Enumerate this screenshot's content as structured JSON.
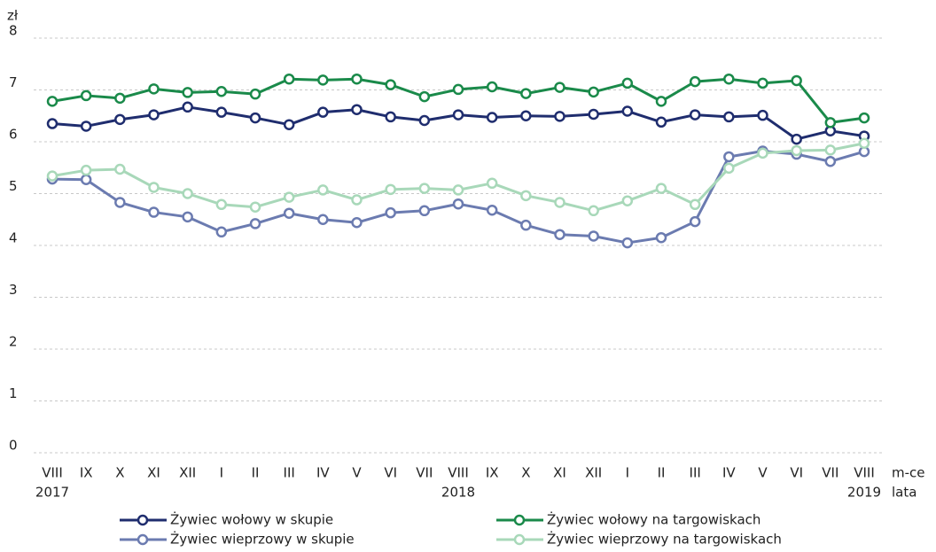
{
  "chart_data": {
    "type": "line",
    "y_label": "zł",
    "x_label": "m-ce",
    "x_label2": "lata",
    "categories": [
      "VIII",
      "IX",
      "X",
      "XI",
      "XII",
      "I",
      "II",
      "III",
      "IV",
      "V",
      "VI",
      "VII",
      "VIII",
      "IX",
      "X",
      "XI",
      "XII",
      "I",
      "II",
      "III",
      "IV",
      "V",
      "VI",
      "VII",
      "VIII"
    ],
    "year_labels": [
      "2017",
      null,
      null,
      null,
      null,
      null,
      null,
      null,
      null,
      null,
      null,
      null,
      "2018",
      null,
      null,
      null,
      null,
      null,
      null,
      null,
      null,
      null,
      null,
      null,
      "2019"
    ],
    "ylim": [
      0,
      8
    ],
    "yticks": [
      0,
      1,
      2,
      3,
      4,
      5,
      6,
      7,
      8
    ],
    "grid": true,
    "series": [
      {
        "name": "Żywiec wołowy w skupie",
        "color": "#1f2d6e",
        "values": [
          6.35,
          6.3,
          6.43,
          6.52,
          6.67,
          6.57,
          6.46,
          6.33,
          6.57,
          6.62,
          6.48,
          6.41,
          6.52,
          6.47,
          6.5,
          6.49,
          6.53,
          6.59,
          6.38,
          6.52,
          6.48,
          6.51,
          6.05,
          6.21,
          6.11
        ]
      },
      {
        "name": "Żywiec wołowy na targowiskach",
        "color": "#1a8a4a",
        "values": [
          6.78,
          6.89,
          6.84,
          7.02,
          6.95,
          6.97,
          6.92,
          7.21,
          7.19,
          7.21,
          7.1,
          6.87,
          7.01,
          7.06,
          6.93,
          7.05,
          6.96,
          7.13,
          6.78,
          7.16,
          7.21,
          7.13,
          7.18,
          6.37,
          6.46
        ]
      },
      {
        "name": "Żywiec wieprzowy w skupie",
        "color": "#6b7bb0",
        "values": [
          5.28,
          5.27,
          4.83,
          4.64,
          4.55,
          4.26,
          4.42,
          4.62,
          4.5,
          4.44,
          4.63,
          4.67,
          4.8,
          4.68,
          4.39,
          4.21,
          4.18,
          4.05,
          4.15,
          4.46,
          5.71,
          5.82,
          5.76,
          5.62,
          5.81
        ]
      },
      {
        "name": "Żywiec wieprzowy na targowiskach",
        "color": "#a8d8b9",
        "values": [
          5.34,
          5.45,
          5.47,
          5.12,
          5.0,
          4.79,
          4.74,
          4.93,
          5.07,
          4.88,
          5.08,
          5.1,
          5.07,
          5.2,
          4.96,
          4.83,
          4.67,
          4.86,
          5.1,
          4.79,
          5.49,
          5.78,
          5.83,
          5.84,
          5.97
        ]
      }
    ]
  }
}
